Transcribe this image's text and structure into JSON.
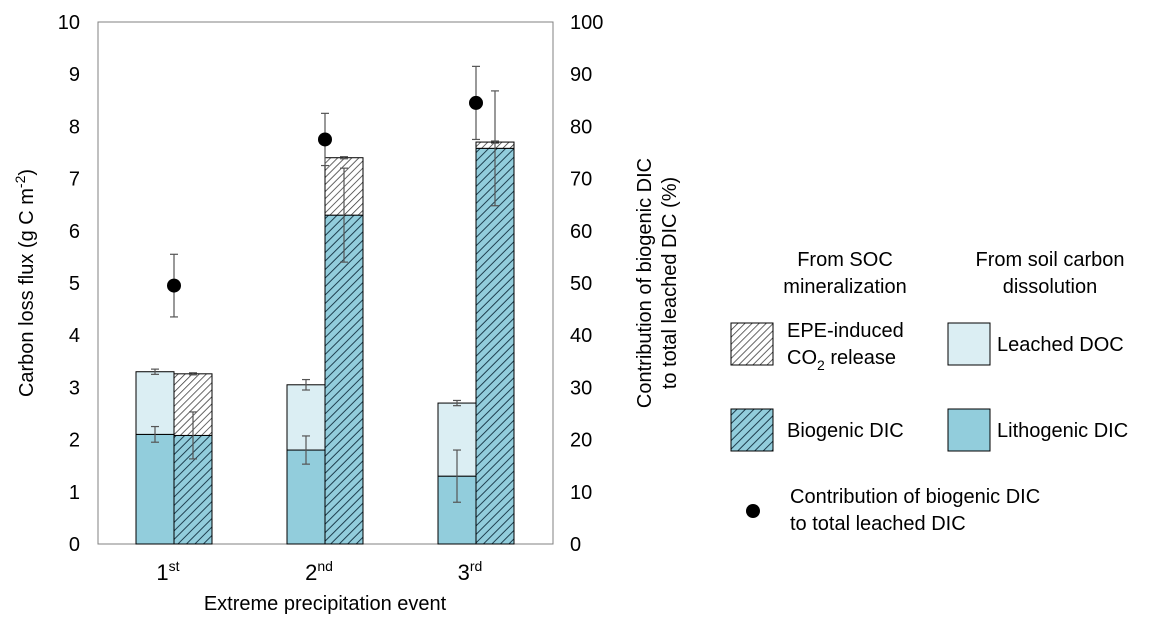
{
  "chart_data": {
    "type": "bar",
    "xlabel": "Extreme precipitation event",
    "ylabel_left": "Carbon loss flux (g C m",
    "ylabel_left_sup": "-2",
    "ylabel_left_end": ")",
    "ylabel_right_line1": "Contribution of biogenic DIC",
    "ylabel_right_line2": "to total leached DIC (%)",
    "ylim_left": [
      0,
      10
    ],
    "ylim_right": [
      0,
      100
    ],
    "yticks_left": [
      "0",
      "1",
      "2",
      "3",
      "4",
      "5",
      "6",
      "7",
      "8",
      "9",
      "10"
    ],
    "yticks_right": [
      "0",
      "10",
      "20",
      "30",
      "40",
      "50",
      "60",
      "70",
      "80",
      "90",
      "100"
    ],
    "categories": [
      {
        "main": "1",
        "sup": "st"
      },
      {
        "main": "2",
        "sup": "nd"
      },
      {
        "main": "3",
        "sup": "rd"
      }
    ],
    "soil_dissolution_stack": {
      "lithogenic_dic": [
        2.1,
        1.8,
        1.3
      ],
      "lithogenic_dic_err": [
        0.15,
        0.27,
        0.5
      ],
      "leached_doc": [
        1.2,
        1.25,
        1.4
      ],
      "total_err": [
        0.05,
        0.1,
        0.05
      ]
    },
    "soc_mineralization_stack": {
      "biogenic_dic": [
        2.08,
        6.3,
        7.58
      ],
      "biogenic_dic_err": [
        0.45,
        0.9,
        1.1
      ],
      "epe_co2_release": [
        1.18,
        1.1,
        0.12
      ],
      "total_err": [
        0.02,
        0.02,
        0.02
      ]
    },
    "contribution_percent": [
      49.5,
      77.5,
      84.5
    ],
    "contribution_err": [
      6.0,
      5.0,
      7.0
    ],
    "legend": {
      "group1_line1": "From SOC",
      "group1_line2": "mineralization",
      "group2_line1": "From soil carbon",
      "group2_line2": "dissolution",
      "epe_line1": "EPE-induced",
      "epe_line2_main": "CO",
      "epe_line2_sub": "2",
      "epe_line2_end": " release",
      "leached_doc": "Leached DOC",
      "biogenic_dic": "Biogenic DIC",
      "lithogenic_dic": "Lithogenic DIC",
      "contribution_line1": "Contribution of biogenic DIC",
      "contribution_line2": "to total leached DIC"
    },
    "colors": {
      "lithogenic": "#92cddc",
      "doc": "#dbeef3",
      "biogenic_fill": "#92cddc",
      "hatch": "#1f3f4f",
      "error_bar": "#555555",
      "dot": "#000000"
    }
  }
}
